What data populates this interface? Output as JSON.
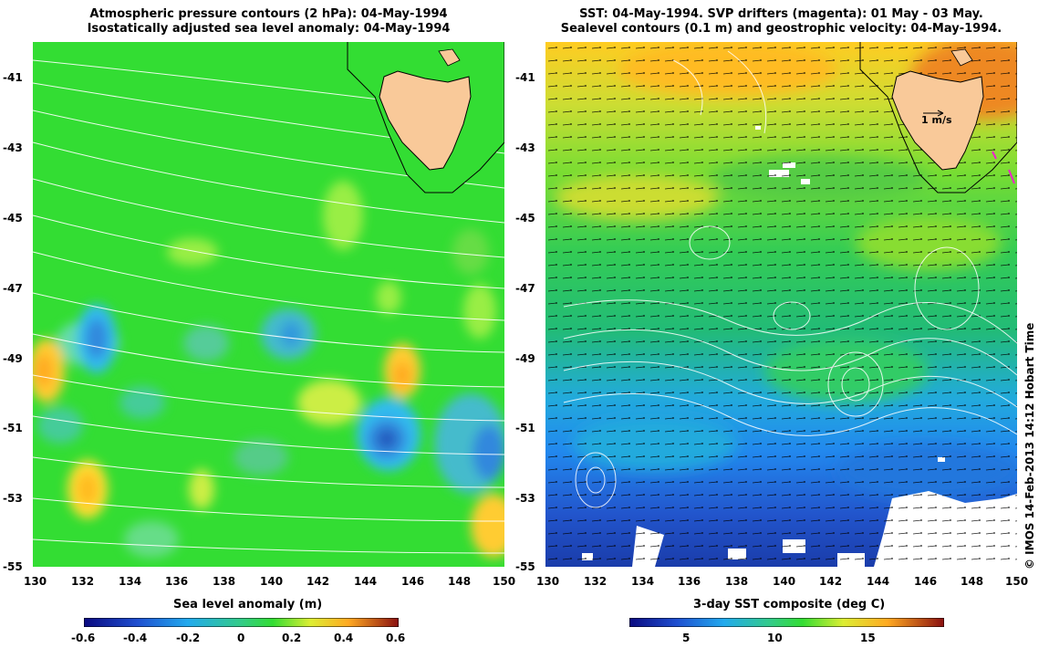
{
  "left_panel": {
    "title_line1": "Atmospheric pressure contours (2 hPa): 04-May-1994",
    "title_line2": "Isostatically adjusted sea level anomaly: 04-May-1994",
    "colorbar_label": "Sea level anomaly (m)",
    "colorbar_ticks": [
      "-0.6",
      "-0.4",
      "-0.2",
      "0",
      "0.2",
      "0.4",
      "0.6"
    ]
  },
  "right_panel": {
    "title_line1": "SST: 04-May-1994. SVP drifters (magenta): 01 May - 03 May.",
    "title_line2": "Sealevel contours (0.1 m) and geostrophic velocity: 04-May-1994.",
    "colorbar_label": "3-day SST composite (deg C)",
    "colorbar_ticks": [
      "5",
      "10",
      "15"
    ],
    "velocity_scale_label": "1 m/s"
  },
  "axes": {
    "lon_ticks": [
      "130",
      "132",
      "134",
      "136",
      "138",
      "140",
      "142",
      "144",
      "146",
      "148",
      "150"
    ],
    "lat_ticks": [
      "-41",
      "-43",
      "-45",
      "-47",
      "-49",
      "-51",
      "-53",
      "-55"
    ]
  },
  "credit": "© IMOS 14-Feb-2013 14:12 Hobart Time",
  "colors": {
    "land": "#f9c999",
    "ocean_mid": "#33dd33",
    "contour": "#ffffff"
  }
}
